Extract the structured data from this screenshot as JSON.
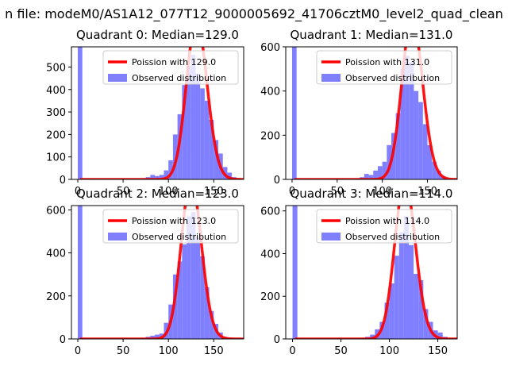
{
  "figure": {
    "suptitle": "n file: modeM0/AS1A12_077T12_9000005692_41706cztM0_level2_quad_clean"
  },
  "chart_data": [
    {
      "type": "bar",
      "title": "Quadrant 0: Median=129.0",
      "xlim": [
        -7,
        183
      ],
      "ylim": [
        0,
        590
      ],
      "xticks": [
        0,
        50,
        100,
        150
      ],
      "yticks": [
        0,
        100,
        200,
        300,
        400,
        500
      ],
      "bin_width": 5,
      "zero_bin": {
        "x": 0,
        "value": 590
      },
      "hist": {
        "x": [
          70,
          75,
          80,
          85,
          90,
          95,
          100,
          105,
          110,
          115,
          120,
          125,
          130,
          135,
          140,
          145,
          150,
          155,
          160,
          165,
          170,
          175
        ],
        "values": [
          5,
          10,
          20,
          15,
          20,
          40,
          85,
          200,
          290,
          420,
          505,
          555,
          470,
          405,
          350,
          265,
          175,
          115,
          55,
          30,
          10,
          5
        ]
      },
      "poisson": {
        "lambda": 129.0,
        "total": 4030
      },
      "legend": [
        {
          "label": "Poission with 129.0",
          "kind": "line",
          "color": "#ff0000"
        },
        {
          "label": "Observed distribution",
          "kind": "patch",
          "color": "#8080ff"
        }
      ],
      "legend_position": "upper right",
      "colors": {
        "hist": "#7f7fff",
        "line": "#ff0000"
      }
    },
    {
      "type": "bar",
      "title": "Quadrant 1: Median=131.0",
      "xlim": [
        -7,
        183
      ],
      "ylim": [
        0,
        600
      ],
      "xticks": [
        0,
        50,
        100,
        150
      ],
      "yticks": [
        0,
        200,
        400,
        600
      ],
      "bin_width": 5,
      "zero_bin": {
        "x": 0,
        "value": 600
      },
      "hist": {
        "x": [
          70,
          75,
          80,
          85,
          90,
          95,
          100,
          105,
          110,
          115,
          120,
          125,
          130,
          135,
          140,
          145,
          150,
          155,
          160,
          165
        ],
        "values": [
          5,
          10,
          25,
          20,
          40,
          60,
          80,
          155,
          210,
          300,
          500,
          560,
          530,
          400,
          350,
          250,
          155,
          80,
          40,
          15
        ]
      },
      "poisson": {
        "lambda": 131.0,
        "total": 4200
      },
      "legend": [
        {
          "label": "Poission with 131.0",
          "kind": "line",
          "color": "#ff0000"
        },
        {
          "label": "Observed distribution",
          "kind": "patch",
          "color": "#8080ff"
        }
      ],
      "legend_position": "upper right",
      "colors": {
        "hist": "#7f7fff",
        "line": "#ff0000"
      }
    },
    {
      "type": "bar",
      "title": "Quadrant 2: Median=123.0",
      "xlim": [
        -7,
        183
      ],
      "ylim": [
        0,
        620
      ],
      "xticks": [
        0,
        50,
        100,
        150
      ],
      "yticks": [
        0,
        200,
        400,
        600
      ],
      "bin_width": 5,
      "zero_bin": {
        "x": 0,
        "value": 620
      },
      "hist": {
        "x": [
          70,
          75,
          80,
          85,
          90,
          95,
          100,
          105,
          110,
          115,
          120,
          125,
          130,
          135,
          140,
          145,
          150,
          155,
          160,
          165
        ],
        "values": [
          5,
          10,
          15,
          20,
          25,
          75,
          160,
          300,
          360,
          440,
          570,
          590,
          475,
          385,
          240,
          130,
          70,
          30,
          10,
          5
        ]
      },
      "poisson": {
        "lambda": 123.0,
        "total": 4100
      },
      "legend": [
        {
          "label": "Poission with 123.0",
          "kind": "line",
          "color": "#ff0000"
        },
        {
          "label": "Observed distribution",
          "kind": "patch",
          "color": "#8080ff"
        }
      ],
      "legend_position": "upper right",
      "colors": {
        "hist": "#7f7fff",
        "line": "#ff0000"
      }
    },
    {
      "type": "bar",
      "title": "Quadrant 3: Median=114.0",
      "xlim": [
        -7,
        170
      ],
      "ylim": [
        0,
        625
      ],
      "xticks": [
        0,
        50,
        100,
        150
      ],
      "yticks": [
        0,
        200,
        400,
        600
      ],
      "bin_width": 5,
      "zero_bin": {
        "x": 0,
        "value": 625
      },
      "hist": {
        "x": [
          70,
          75,
          80,
          85,
          90,
          95,
          100,
          105,
          110,
          115,
          120,
          125,
          130,
          135,
          140,
          145,
          150,
          155
        ],
        "values": [
          5,
          10,
          20,
          45,
          80,
          170,
          260,
          390,
          500,
          575,
          440,
          305,
          275,
          140,
          80,
          40,
          30,
          10
        ]
      },
      "poisson": {
        "lambda": 114.0,
        "total": 3950
      },
      "legend": [
        {
          "label": "Poission with 114.0",
          "kind": "line",
          "color": "#ff0000"
        },
        {
          "label": "Observed distribution",
          "kind": "patch",
          "color": "#8080ff"
        }
      ],
      "legend_position": "upper right",
      "colors": {
        "hist": "#7f7fff",
        "line": "#ff0000"
      }
    }
  ]
}
